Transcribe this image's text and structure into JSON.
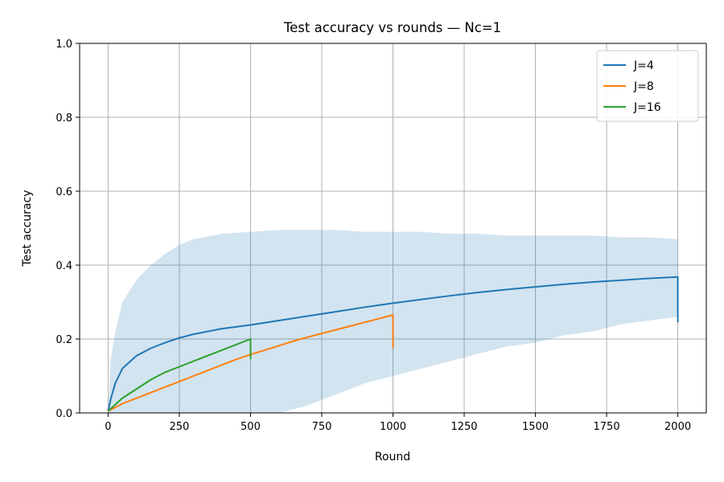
{
  "chart_data": {
    "type": "line",
    "title": "Test accuracy vs rounds — Nc=1",
    "xlabel": "Round",
    "ylabel": "Test accuracy",
    "xlim": [
      -100,
      2100
    ],
    "ylim": [
      0,
      1.0
    ],
    "xticks": [
      0,
      250,
      500,
      750,
      1000,
      1250,
      1500,
      1750,
      2000
    ],
    "yticks": [
      0.0,
      0.2,
      0.4,
      0.6,
      0.8,
      1.0
    ],
    "xtick_labels": [
      "0",
      "250",
      "500",
      "750",
      "1000",
      "1250",
      "1500",
      "1750",
      "2000"
    ],
    "ytick_labels": [
      "0.0",
      "0.2",
      "0.4",
      "0.6",
      "0.8",
      "1.0"
    ],
    "grid": true,
    "legend_position": "top-right",
    "series": [
      {
        "name": "J=4",
        "color": "#1f77b4",
        "x": [
          0,
          10,
          25,
          50,
          100,
          150,
          200,
          250,
          300,
          400,
          500,
          600,
          700,
          800,
          900,
          1000,
          1100,
          1200,
          1300,
          1400,
          1500,
          1600,
          1700,
          1800,
          1900,
          2000,
          2000
        ],
        "y": [
          0.005,
          0.04,
          0.08,
          0.12,
          0.155,
          0.175,
          0.19,
          0.203,
          0.213,
          0.228,
          0.238,
          0.25,
          0.262,
          0.274,
          0.286,
          0.297,
          0.307,
          0.317,
          0.326,
          0.334,
          0.341,
          0.348,
          0.354,
          0.359,
          0.364,
          0.368,
          0.245
        ],
        "band": {
          "x": [
            0,
            10,
            25,
            50,
            100,
            150,
            200,
            250,
            300,
            400,
            500,
            600,
            700,
            800,
            900,
            1000,
            1100,
            1200,
            1300,
            1400,
            1500,
            1600,
            1700,
            1800,
            1900,
            2000
          ],
          "upper": [
            0.01,
            0.15,
            0.22,
            0.3,
            0.36,
            0.4,
            0.43,
            0.455,
            0.47,
            0.485,
            0.49,
            0.495,
            0.495,
            0.495,
            0.49,
            0.49,
            0.49,
            0.485,
            0.485,
            0.48,
            0.48,
            0.48,
            0.48,
            0.475,
            0.475,
            0.47
          ],
          "lower": [
            0.0,
            0.0,
            0.0,
            0.0,
            0.0,
            0.0,
            0.0,
            0.0,
            0.0,
            0.0,
            0.0,
            0.0,
            0.02,
            0.05,
            0.08,
            0.1,
            0.12,
            0.14,
            0.16,
            0.18,
            0.19,
            0.21,
            0.22,
            0.24,
            0.25,
            0.26
          ]
        }
      },
      {
        "name": "J=8",
        "color": "#ff7f0e",
        "x": [
          0,
          50,
          100,
          150,
          200,
          250,
          300,
          350,
          400,
          450,
          500,
          550,
          600,
          650,
          700,
          750,
          800,
          850,
          900,
          950,
          1000,
          1000
        ],
        "y": [
          0.005,
          0.025,
          0.04,
          0.055,
          0.07,
          0.085,
          0.1,
          0.115,
          0.13,
          0.145,
          0.158,
          0.17,
          0.182,
          0.194,
          0.205,
          0.215,
          0.225,
          0.235,
          0.245,
          0.255,
          0.265,
          0.175
        ]
      },
      {
        "name": "J=16",
        "color": "#2ca02c",
        "x": [
          0,
          50,
          100,
          150,
          200,
          250,
          300,
          350,
          400,
          450,
          500,
          500
        ],
        "y": [
          0.005,
          0.04,
          0.065,
          0.09,
          0.11,
          0.125,
          0.14,
          0.155,
          0.17,
          0.185,
          0.2,
          0.145
        ]
      }
    ]
  }
}
